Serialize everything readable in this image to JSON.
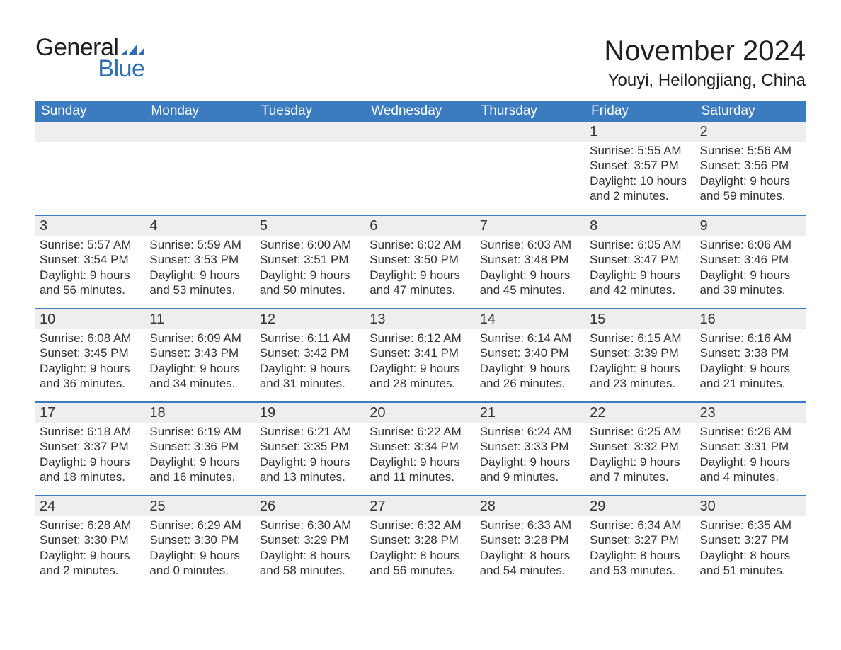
{
  "brand": {
    "word1": "General",
    "word2": "Blue",
    "flag_color": "#2f6fb5",
    "text_dark": "#1f1f1f"
  },
  "title": "November 2024",
  "location": "Youyi, Heilongjiang, China",
  "header_bg": "#3b7bbf",
  "header_fg": "#ffffff",
  "row_separator_color": "#3b7bbf",
  "daynum_bg": "#eeeeee",
  "text_color": "#333333",
  "weekdays": [
    "Sunday",
    "Monday",
    "Tuesday",
    "Wednesday",
    "Thursday",
    "Friday",
    "Saturday"
  ],
  "weeks": [
    [
      null,
      null,
      null,
      null,
      null,
      {
        "n": "1",
        "sunrise": "Sunrise: 5:55 AM",
        "sunset": "Sunset: 3:57 PM",
        "dl1": "Daylight: 10 hours",
        "dl2": "and 2 minutes."
      },
      {
        "n": "2",
        "sunrise": "Sunrise: 5:56 AM",
        "sunset": "Sunset: 3:56 PM",
        "dl1": "Daylight: 9 hours",
        "dl2": "and 59 minutes."
      }
    ],
    [
      {
        "n": "3",
        "sunrise": "Sunrise: 5:57 AM",
        "sunset": "Sunset: 3:54 PM",
        "dl1": "Daylight: 9 hours",
        "dl2": "and 56 minutes."
      },
      {
        "n": "4",
        "sunrise": "Sunrise: 5:59 AM",
        "sunset": "Sunset: 3:53 PM",
        "dl1": "Daylight: 9 hours",
        "dl2": "and 53 minutes."
      },
      {
        "n": "5",
        "sunrise": "Sunrise: 6:00 AM",
        "sunset": "Sunset: 3:51 PM",
        "dl1": "Daylight: 9 hours",
        "dl2": "and 50 minutes."
      },
      {
        "n": "6",
        "sunrise": "Sunrise: 6:02 AM",
        "sunset": "Sunset: 3:50 PM",
        "dl1": "Daylight: 9 hours",
        "dl2": "and 47 minutes."
      },
      {
        "n": "7",
        "sunrise": "Sunrise: 6:03 AM",
        "sunset": "Sunset: 3:48 PM",
        "dl1": "Daylight: 9 hours",
        "dl2": "and 45 minutes."
      },
      {
        "n": "8",
        "sunrise": "Sunrise: 6:05 AM",
        "sunset": "Sunset: 3:47 PM",
        "dl1": "Daylight: 9 hours",
        "dl2": "and 42 minutes."
      },
      {
        "n": "9",
        "sunrise": "Sunrise: 6:06 AM",
        "sunset": "Sunset: 3:46 PM",
        "dl1": "Daylight: 9 hours",
        "dl2": "and 39 minutes."
      }
    ],
    [
      {
        "n": "10",
        "sunrise": "Sunrise: 6:08 AM",
        "sunset": "Sunset: 3:45 PM",
        "dl1": "Daylight: 9 hours",
        "dl2": "and 36 minutes."
      },
      {
        "n": "11",
        "sunrise": "Sunrise: 6:09 AM",
        "sunset": "Sunset: 3:43 PM",
        "dl1": "Daylight: 9 hours",
        "dl2": "and 34 minutes."
      },
      {
        "n": "12",
        "sunrise": "Sunrise: 6:11 AM",
        "sunset": "Sunset: 3:42 PM",
        "dl1": "Daylight: 9 hours",
        "dl2": "and 31 minutes."
      },
      {
        "n": "13",
        "sunrise": "Sunrise: 6:12 AM",
        "sunset": "Sunset: 3:41 PM",
        "dl1": "Daylight: 9 hours",
        "dl2": "and 28 minutes."
      },
      {
        "n": "14",
        "sunrise": "Sunrise: 6:14 AM",
        "sunset": "Sunset: 3:40 PM",
        "dl1": "Daylight: 9 hours",
        "dl2": "and 26 minutes."
      },
      {
        "n": "15",
        "sunrise": "Sunrise: 6:15 AM",
        "sunset": "Sunset: 3:39 PM",
        "dl1": "Daylight: 9 hours",
        "dl2": "and 23 minutes."
      },
      {
        "n": "16",
        "sunrise": "Sunrise: 6:16 AM",
        "sunset": "Sunset: 3:38 PM",
        "dl1": "Daylight: 9 hours",
        "dl2": "and 21 minutes."
      }
    ],
    [
      {
        "n": "17",
        "sunrise": "Sunrise: 6:18 AM",
        "sunset": "Sunset: 3:37 PM",
        "dl1": "Daylight: 9 hours",
        "dl2": "and 18 minutes."
      },
      {
        "n": "18",
        "sunrise": "Sunrise: 6:19 AM",
        "sunset": "Sunset: 3:36 PM",
        "dl1": "Daylight: 9 hours",
        "dl2": "and 16 minutes."
      },
      {
        "n": "19",
        "sunrise": "Sunrise: 6:21 AM",
        "sunset": "Sunset: 3:35 PM",
        "dl1": "Daylight: 9 hours",
        "dl2": "and 13 minutes."
      },
      {
        "n": "20",
        "sunrise": "Sunrise: 6:22 AM",
        "sunset": "Sunset: 3:34 PM",
        "dl1": "Daylight: 9 hours",
        "dl2": "and 11 minutes."
      },
      {
        "n": "21",
        "sunrise": "Sunrise: 6:24 AM",
        "sunset": "Sunset: 3:33 PM",
        "dl1": "Daylight: 9 hours",
        "dl2": "and 9 minutes."
      },
      {
        "n": "22",
        "sunrise": "Sunrise: 6:25 AM",
        "sunset": "Sunset: 3:32 PM",
        "dl1": "Daylight: 9 hours",
        "dl2": "and 7 minutes."
      },
      {
        "n": "23",
        "sunrise": "Sunrise: 6:26 AM",
        "sunset": "Sunset: 3:31 PM",
        "dl1": "Daylight: 9 hours",
        "dl2": "and 4 minutes."
      }
    ],
    [
      {
        "n": "24",
        "sunrise": "Sunrise: 6:28 AM",
        "sunset": "Sunset: 3:30 PM",
        "dl1": "Daylight: 9 hours",
        "dl2": "and 2 minutes."
      },
      {
        "n": "25",
        "sunrise": "Sunrise: 6:29 AM",
        "sunset": "Sunset: 3:30 PM",
        "dl1": "Daylight: 9 hours",
        "dl2": "and 0 minutes."
      },
      {
        "n": "26",
        "sunrise": "Sunrise: 6:30 AM",
        "sunset": "Sunset: 3:29 PM",
        "dl1": "Daylight: 8 hours",
        "dl2": "and 58 minutes."
      },
      {
        "n": "27",
        "sunrise": "Sunrise: 6:32 AM",
        "sunset": "Sunset: 3:28 PM",
        "dl1": "Daylight: 8 hours",
        "dl2": "and 56 minutes."
      },
      {
        "n": "28",
        "sunrise": "Sunrise: 6:33 AM",
        "sunset": "Sunset: 3:28 PM",
        "dl1": "Daylight: 8 hours",
        "dl2": "and 54 minutes."
      },
      {
        "n": "29",
        "sunrise": "Sunrise: 6:34 AM",
        "sunset": "Sunset: 3:27 PM",
        "dl1": "Daylight: 8 hours",
        "dl2": "and 53 minutes."
      },
      {
        "n": "30",
        "sunrise": "Sunrise: 6:35 AM",
        "sunset": "Sunset: 3:27 PM",
        "dl1": "Daylight: 8 hours",
        "dl2": "and 51 minutes."
      }
    ]
  ]
}
